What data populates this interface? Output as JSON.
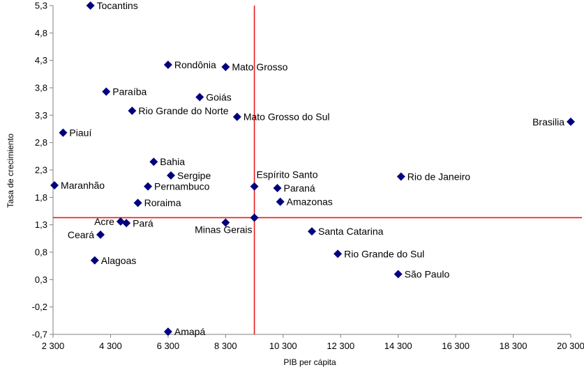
{
  "chart_data": {
    "type": "scatter",
    "title": "",
    "xlabel": "PIB per cápita",
    "ylabel": "Tasa de crecimiento",
    "xlim": [
      2300,
      20300
    ],
    "ylim": [
      -0.7,
      5.3
    ],
    "x_ticks": [
      2300,
      4300,
      6300,
      8300,
      10300,
      12300,
      14300,
      16300,
      18300,
      20300
    ],
    "x_tick_labels": [
      "2 300",
      "4 300",
      "6 300",
      "8 300",
      "10 300",
      "12 300",
      "14 300",
      "16 300",
      "18 300",
      "20 300"
    ],
    "y_ticks": [
      -0.7,
      -0.2,
      0.3,
      0.8,
      1.3,
      1.8,
      2.3,
      2.8,
      3.3,
      3.8,
      4.3,
      4.8,
      5.3
    ],
    "y_tick_labels": [
      "-0,7",
      "-0,2",
      "0,3",
      "0,8",
      "1,3",
      "1,8",
      "2,3",
      "2,8",
      "3,3",
      "3,8",
      "4,3",
      "4,8",
      "5,3"
    ],
    "grid": false,
    "legend": false,
    "marker": "diamond",
    "marker_color": "#00007f",
    "reference_line_color": "#e8191c",
    "reference_lines": {
      "x": 9300,
      "y": 1.43
    },
    "points": [
      {
        "label": "Tocantins",
        "x": 3600,
        "y": 5.3,
        "label_side": "right"
      },
      {
        "label": "Rondônia",
        "x": 6300,
        "y": 4.22,
        "label_side": "right"
      },
      {
        "label": "Mato Grosso",
        "x": 8300,
        "y": 4.18,
        "label_side": "right"
      },
      {
        "label": "Paraíba",
        "x": 4150,
        "y": 3.73,
        "label_side": "right"
      },
      {
        "label": "Goiás",
        "x": 7400,
        "y": 3.63,
        "label_side": "right"
      },
      {
        "label": "Rio Grande do Norte",
        "x": 5050,
        "y": 3.38,
        "label_side": "right"
      },
      {
        "label": "Mato Grosso do Sul",
        "x": 8700,
        "y": 3.27,
        "label_side": "right"
      },
      {
        "label": "Brasilia",
        "x": 20300,
        "y": 3.18,
        "label_side": "left"
      },
      {
        "label": "Piauí",
        "x": 2650,
        "y": 2.98,
        "label_side": "right"
      },
      {
        "label": "Bahia",
        "x": 5800,
        "y": 2.45,
        "label_side": "right"
      },
      {
        "label": "Sergipe",
        "x": 6400,
        "y": 2.2,
        "label_side": "right"
      },
      {
        "label": "Rio de Janeiro",
        "x": 14400,
        "y": 2.18,
        "label_side": "right"
      },
      {
        "label": "Maranhão",
        "x": 2350,
        "y": 2.02,
        "label_side": "right"
      },
      {
        "label": "Pernambuco",
        "x": 5600,
        "y": 2.0,
        "label_side": "right"
      },
      {
        "label": "Espírito Santo",
        "x": 9300,
        "y": 2.0,
        "label_side": "above-right"
      },
      {
        "label": "Paraná",
        "x": 10100,
        "y": 1.97,
        "label_side": "right"
      },
      {
        "label": "Roraima",
        "x": 5250,
        "y": 1.7,
        "label_side": "right"
      },
      {
        "label": "Amazonas",
        "x": 10200,
        "y": 1.72,
        "label_side": "right"
      },
      {
        "label": "Minas Gerais",
        "x": 9300,
        "y": 1.43,
        "label_side": "below-left"
      },
      {
        "label": "Acre",
        "x": 4650,
        "y": 1.36,
        "label_side": "left"
      },
      {
        "label": "Pará",
        "x": 4850,
        "y": 1.33,
        "label_side": "right"
      },
      {
        "label": "",
        "x": 8300,
        "y": 1.34,
        "label_side": "none"
      },
      {
        "label": "Santa Catarina",
        "x": 11300,
        "y": 1.18,
        "label_side": "right"
      },
      {
        "label": "Ceará",
        "x": 3950,
        "y": 1.12,
        "label_side": "left"
      },
      {
        "label": "Rio Grande do Sul",
        "x": 12200,
        "y": 0.77,
        "label_side": "right"
      },
      {
        "label": "Alagoas",
        "x": 3750,
        "y": 0.65,
        "label_side": "right"
      },
      {
        "label": "São Paulo",
        "x": 14300,
        "y": 0.4,
        "label_side": "right"
      },
      {
        "label": "Amapá",
        "x": 6300,
        "y": -0.65,
        "label_side": "right"
      }
    ]
  }
}
